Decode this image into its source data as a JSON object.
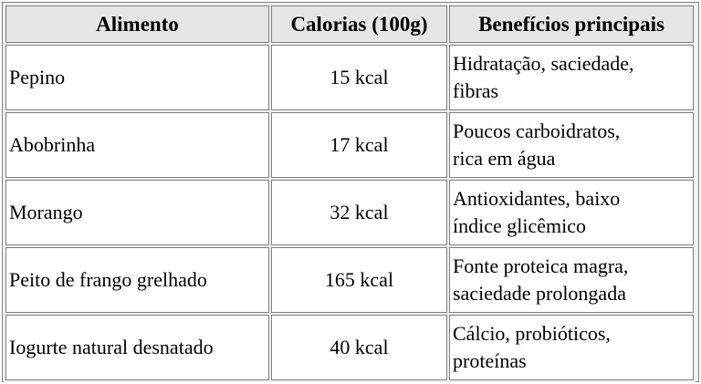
{
  "table": {
    "headers": {
      "food": "Alimento",
      "calories": "Calorias (100g)",
      "benefits": "Benefícios principais"
    },
    "rows": [
      {
        "food": "Pepino",
        "calories": "15 kcal",
        "benefits_line1": "Hidratação, saciedade,",
        "benefits_line2": "fibras"
      },
      {
        "food": "Abobrinha",
        "calories": "17 kcal",
        "benefits_line1": "Poucos carboidratos,",
        "benefits_line2": "rica em água"
      },
      {
        "food": "Morango",
        "calories": "32 kcal",
        "benefits_line1": "Antioxidantes, baixo",
        "benefits_line2": "índice glicêmico"
      },
      {
        "food": "Peito de frango grelhado",
        "calories": "165 kcal",
        "benefits_line1": "Fonte proteica magra,",
        "benefits_line2": "saciedade prolongada"
      },
      {
        "food": "Iogurte natural desnatado",
        "calories": "40 kcal",
        "benefits_line1": "Cálcio, probióticos,",
        "benefits_line2": "proteínas"
      }
    ]
  },
  "colors": {
    "border": "#808080",
    "header_bg": "#e6e6e6",
    "cell_bg": "#ffffff",
    "table_bg": "#f0f0f0"
  }
}
